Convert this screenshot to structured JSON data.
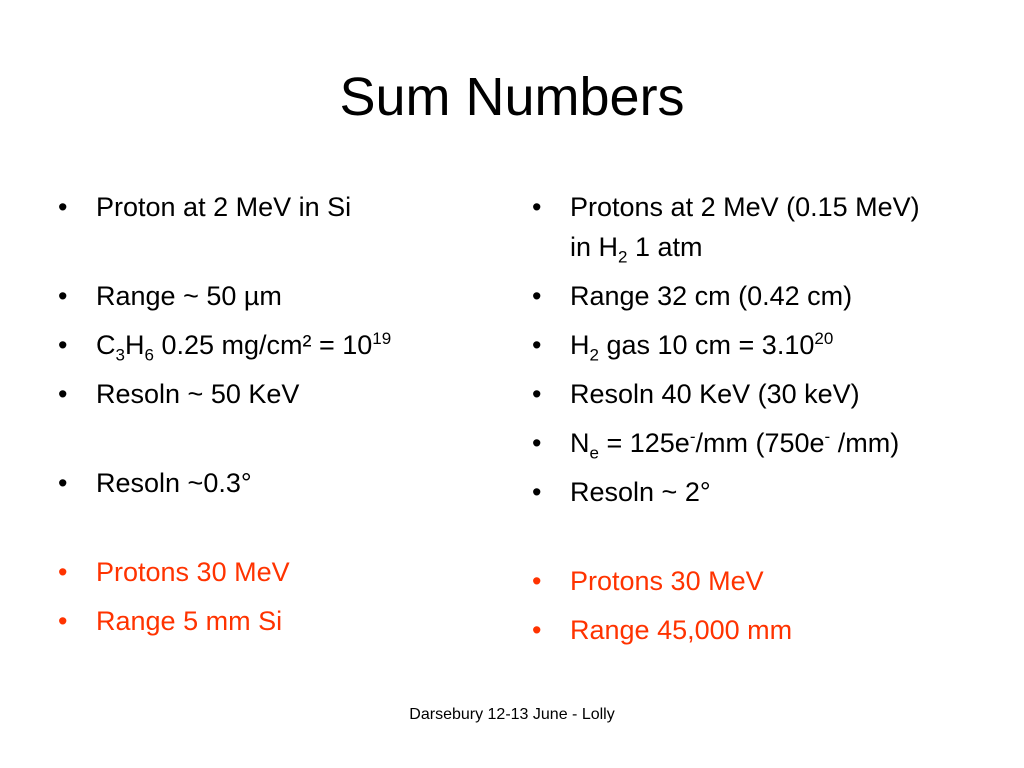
{
  "title": "Sum Numbers",
  "columns": [
    {
      "groups": [
        {
          "color": "#000000",
          "items": [
            [
              "Proton at 2 MeV in Si"
            ]
          ]
        },
        {
          "color": "#000000",
          "items": [
            [
              "Range ~ 50 µm"
            ],
            [
              "C",
              {
                "sub": "3"
              },
              "H",
              {
                "sub": "6"
              },
              " 0.25 mg/cm² = 10",
              {
                "sup": "19"
              }
            ],
            [
              "Resoln ~ 50 KeV"
            ]
          ]
        },
        {
          "color": "#000000",
          "items": [
            [
              "Resoln ~0.3°"
            ]
          ]
        },
        {
          "color": "#ff3300",
          "items": [
            [
              "Protons 30 MeV"
            ],
            [
              "Range 5 mm Si"
            ]
          ]
        }
      ]
    },
    {
      "groups": [
        {
          "color": "#000000",
          "items": [
            [
              "Protons at 2 MeV (0.15 MeV) in H",
              {
                "sub": "2"
              },
              " 1 atm"
            ],
            [
              "Range 32 cm (0.42 cm)"
            ],
            [
              "H",
              {
                "sub": "2"
              },
              " gas 10 cm = 3.10",
              {
                "sup": "20"
              }
            ],
            [
              "Resoln 40 KeV (30 keV)"
            ],
            [
              "N",
              {
                "sub": "e"
              },
              " = 125e",
              {
                "sup": "-"
              },
              "/mm (750e",
              {
                "sup": "-"
              },
              " /mm)"
            ],
            [
              "Resoln  ~ 2°"
            ]
          ]
        },
        {
          "color": "#ff3300",
          "items": [
            [
              "Protons 30 MeV"
            ],
            [
              "Range 45,000 mm"
            ]
          ]
        }
      ]
    }
  ],
  "footer": "Darsebury 12-13 June - Lolly"
}
